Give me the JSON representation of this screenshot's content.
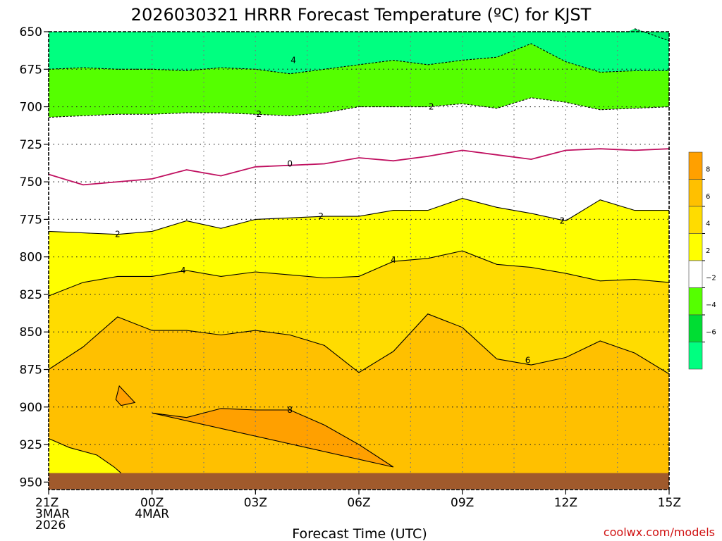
{
  "chart_data": {
    "type": "heatmap",
    "title": "2026030321 HRRR Forecast Temperature (ºC) for KJST",
    "xlabel": "Forecast Time (UTC)",
    "ylabel": "",
    "x_hours": [
      21,
      22,
      23,
      24,
      25,
      26,
      27,
      28,
      29,
      30,
      31,
      32,
      33,
      34,
      35,
      36,
      37,
      38,
      39
    ],
    "xlim": [
      21,
      39
    ],
    "x_ticks": [
      {
        "h": 21,
        "lines": [
          "21Z",
          "3MAR",
          "2026"
        ]
      },
      {
        "h": 24,
        "lines": [
          "00Z",
          "4MAR"
        ]
      },
      {
        "h": 27,
        "lines": [
          "03Z"
        ]
      },
      {
        "h": 30,
        "lines": [
          "06Z"
        ]
      },
      {
        "h": 33,
        "lines": [
          "09Z"
        ]
      },
      {
        "h": 36,
        "lines": [
          "12Z"
        ]
      },
      {
        "h": 39,
        "lines": [
          "15Z"
        ]
      }
    ],
    "ylim": [
      650,
      955
    ],
    "y_ticks": [
      650,
      675,
      700,
      725,
      750,
      775,
      800,
      825,
      850,
      875,
      900,
      925,
      950
    ],
    "ground_level_hpa": 944,
    "contours": [
      {
        "level": -6,
        "style": "dashed",
        "pressure": [
          null,
          null,
          null,
          null,
          null,
          null,
          null,
          null,
          null,
          null,
          null,
          null,
          null,
          null,
          null,
          null,
          null,
          648,
          656
        ]
      },
      {
        "level": -4,
        "style": "dashed",
        "pressure": [
          675,
          674,
          675,
          675,
          676,
          674,
          675,
          678,
          675,
          672,
          669,
          672,
          669,
          667,
          658,
          670,
          677,
          676,
          676
        ]
      },
      {
        "level": -2,
        "style": "dashed",
        "pressure": [
          707,
          706,
          705,
          705,
          704,
          704,
          705,
          706,
          704,
          700,
          700,
          700,
          698,
          701,
          694,
          697,
          702,
          701,
          700
        ]
      },
      {
        "level": 0,
        "style": "magenta",
        "pressure": [
          745,
          752,
          750,
          748,
          742,
          746,
          740,
          739,
          738,
          734,
          736,
          733,
          729,
          732,
          735,
          729,
          728,
          729,
          728
        ]
      },
      {
        "level": 2,
        "style": "solid",
        "pressure": [
          783,
          784,
          785,
          783,
          776,
          781,
          775,
          774,
          773,
          773,
          769,
          769,
          761,
          767,
          771,
          776,
          762,
          769,
          769
        ]
      },
      {
        "level": 4,
        "style": "solid",
        "pressure": [
          826,
          817,
          813,
          813,
          809,
          813,
          810,
          812,
          814,
          813,
          803,
          801,
          796,
          805,
          807,
          811,
          816,
          815,
          817
        ]
      },
      {
        "level": 6,
        "style": "solid",
        "pressure": [
          875,
          860,
          840,
          849,
          849,
          852,
          849,
          852,
          859,
          877,
          863,
          838,
          847,
          868,
          872,
          867,
          856,
          864,
          878
        ]
      },
      {
        "level": 8,
        "style": "solid",
        "pressure": [
          null,
          null,
          null,
          904,
          907,
          901,
          902,
          902,
          912,
          925,
          940,
          null,
          null,
          null,
          null,
          null,
          null,
          null,
          null
        ]
      }
    ],
    "contour_labels": [
      {
        "level": -4,
        "text": "4",
        "h": 28.1,
        "p": 669
      },
      {
        "level": -2,
        "text": "2",
        "h": 27.1,
        "p": 705
      },
      {
        "level": -2,
        "text": "2",
        "h": 32.1,
        "p": 700
      },
      {
        "level": 0,
        "text": "0",
        "h": 28.0,
        "p": 738
      },
      {
        "level": 2,
        "text": "2",
        "h": 23.0,
        "p": 785
      },
      {
        "level": 2,
        "text": "2",
        "h": 28.9,
        "p": 773
      },
      {
        "level": 2,
        "text": "2",
        "h": 35.9,
        "p": 776
      },
      {
        "level": 4,
        "text": "4",
        "h": 24.9,
        "p": 809
      },
      {
        "level": 4,
        "text": "4",
        "h": 31.0,
        "p": 802
      },
      {
        "level": 6,
        "text": "6",
        "h": 34.9,
        "p": 869
      },
      {
        "level": 8,
        "text": "8",
        "h": 28.0,
        "p": 902
      }
    ],
    "colorbar": {
      "ticks": [
        "8",
        "6",
        "4",
        "2",
        "−2",
        "−4",
        "−6"
      ],
      "colors": [
        "#ffa000",
        "#ffc000",
        "#ffdc00",
        "#ffff00",
        "#ffffff",
        "#55ff00",
        "#00dd33",
        "#00ff80"
      ]
    },
    "fill_colors": {
      "above_neg4": "#00ff80",
      "neg4_to_neg2": "#55ff00",
      "neg2_to_2": "#ffffff",
      "2_to_4": "#ffff00",
      "4_to_6": "#ffdc00",
      "6_to_8": "#ffc000",
      "above_8": "#ffa000",
      "ground": "#a05a2c",
      "zero_line": "#c01060"
    },
    "credit": "coolwx.com/models"
  }
}
